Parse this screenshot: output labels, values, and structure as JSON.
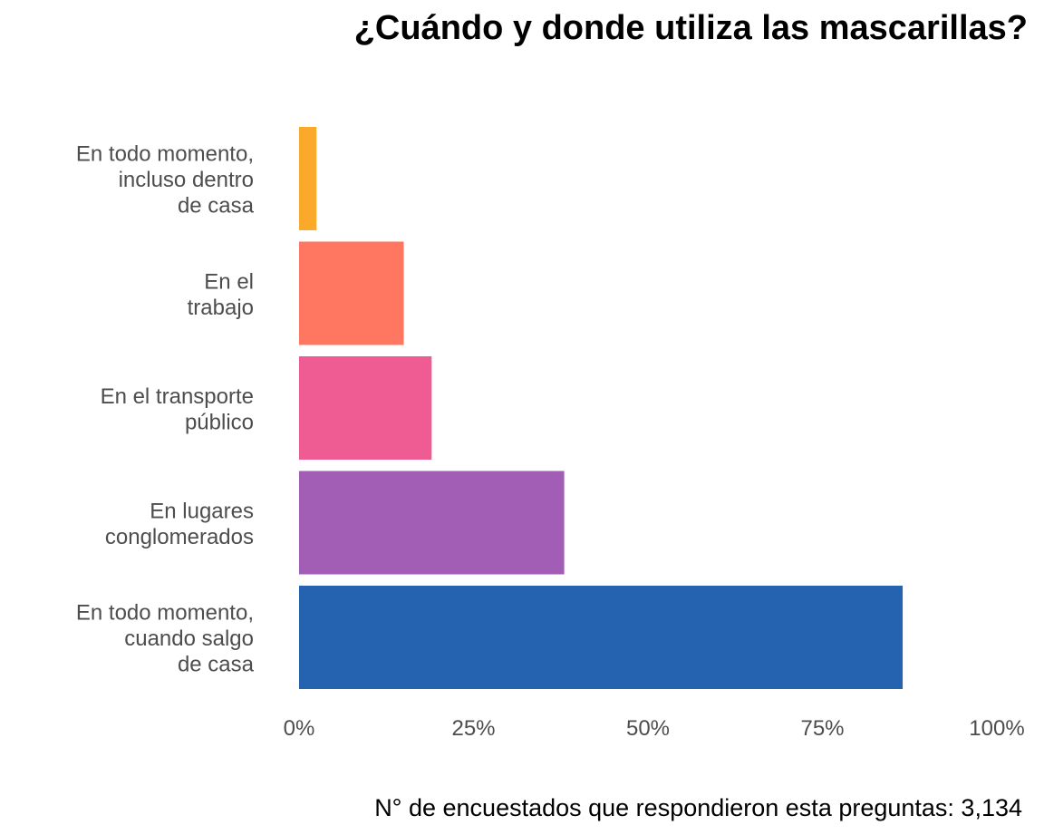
{
  "chart_data": {
    "type": "bar",
    "orientation": "horizontal",
    "title": "¿Cuándo y donde utiliza las mascarillas?",
    "caption": "N° de encuestados que respondieron esta preguntas: 3,134",
    "categories": [
      [
        "En todo momento,",
        "incluso dentro",
        "de casa"
      ],
      [
        "En el",
        "trabajo"
      ],
      [
        "En el transporte",
        "público"
      ],
      [
        "En lugares",
        "conglomerados"
      ],
      [
        "En todo momento,",
        "cuando salgo",
        "de casa"
      ]
    ],
    "values": [
      0.025,
      0.15,
      0.19,
      0.38,
      0.865
    ],
    "colors": [
      "#FBA92B",
      "#FF7661",
      "#EF5B93",
      "#A25EB5",
      "#2563B0"
    ],
    "xlim": [
      0,
      1
    ],
    "x_ticks": [
      0,
      0.25,
      0.5,
      0.75,
      1
    ],
    "x_tick_labels": [
      "0%",
      "25%",
      "50%",
      "75%",
      "100%"
    ],
    "grid": false,
    "legend": "none"
  }
}
